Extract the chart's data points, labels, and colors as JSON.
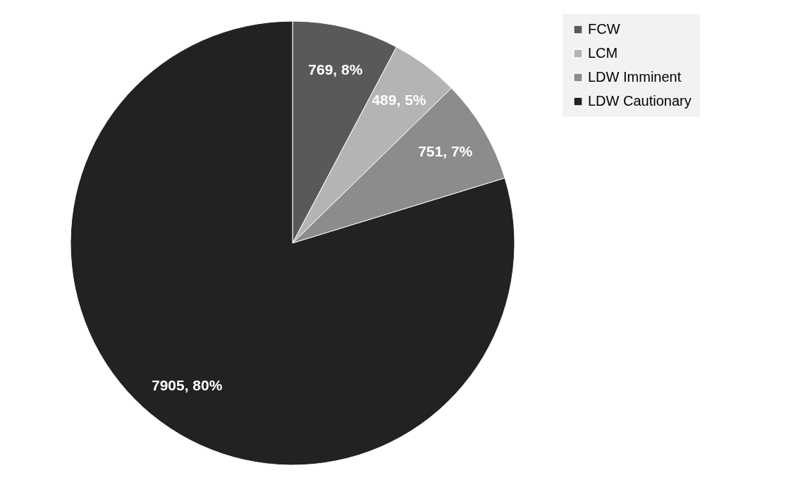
{
  "chart_data": {
    "type": "pie",
    "categories": [
      "FCW",
      "LCM",
      "LDW Imminent",
      "LDW Cautionary"
    ],
    "values": [
      769,
      489,
      751,
      7905
    ],
    "colors": [
      "#595959",
      "#b4b4b4",
      "#8c8c8c",
      "#222222"
    ],
    "value_labels": [
      "769, 8%",
      "489, 5%",
      "751, 7%",
      "7905, 80%"
    ],
    "legend": "top right"
  }
}
